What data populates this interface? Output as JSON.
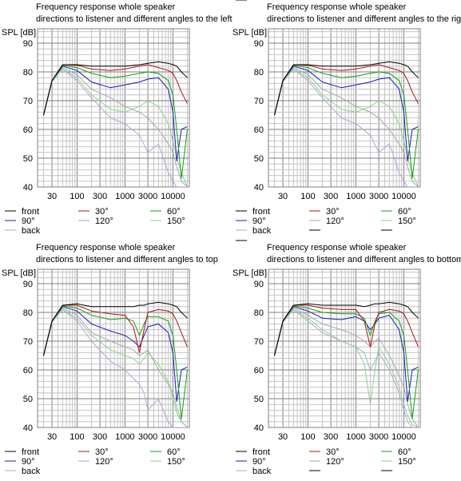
{
  "chart_data": [
    {
      "type": "line",
      "title": "Frequency response whole speaker",
      "subtitle": "directions to listener and different angles to the left",
      "ylabel": "SPL [dB]",
      "xlabel": "",
      "x_scale": "log",
      "xlim": [
        15,
        22000
      ],
      "ylim": [
        40,
        95
      ],
      "grid": true,
      "x_ticks": [
        "30",
        "100",
        "300",
        "1000",
        "3000",
        "10000"
      ],
      "y_ticks": [
        "40",
        "50",
        "60",
        "70",
        "80",
        "90"
      ],
      "legend": [
        {
          "name": "front",
          "color": "#000000"
        },
        {
          "name": "30°",
          "color": "#b01010"
        },
        {
          "name": "60°",
          "color": "#10a010"
        },
        {
          "name": "90°",
          "color": "#1818c0"
        },
        {
          "name": "120°",
          "color": "#a8a8a8"
        },
        {
          "name": "150°",
          "color": "#90d090"
        },
        {
          "name": "back",
          "color": "#a8a8d8"
        }
      ],
      "x": [
        20,
        30,
        50,
        100,
        200,
        500,
        1000,
        2000,
        3000,
        5000,
        8000,
        10000,
        12000,
        15000,
        20000
      ],
      "series": [
        {
          "name": "front",
          "color": "#000000",
          "values": [
            65,
            77,
            82.5,
            82.5,
            82,
            82,
            82,
            82.5,
            83,
            83.5,
            83,
            82.5,
            82,
            80,
            78
          ]
        },
        {
          "name": "30°",
          "color": "#b01010",
          "values": [
            65,
            77,
            82.5,
            82.3,
            81,
            80.5,
            81,
            82,
            82.5,
            81.5,
            80.5,
            79.5,
            77,
            73,
            69
          ]
        },
        {
          "name": "60°",
          "color": "#10a010",
          "values": [
            65,
            77,
            82.3,
            81.5,
            79.5,
            78,
            78.5,
            79.5,
            80,
            79.5,
            77,
            72,
            60,
            43,
            60
          ]
        },
        {
          "name": "90°",
          "color": "#1818c0",
          "values": [
            65,
            77,
            82,
            80.5,
            76.5,
            74.5,
            75.5,
            76.5,
            77.5,
            78,
            74,
            66,
            49,
            60,
            61
          ]
        },
        {
          "name": "120°",
          "color": "#a8a8a8",
          "values": [
            65,
            77,
            81.5,
            79,
            74,
            71,
            68,
            66,
            64,
            60,
            55,
            52,
            47,
            42,
            40
          ]
        },
        {
          "name": "150°",
          "color": "#90d090",
          "values": [
            65,
            76.5,
            81,
            78,
            72,
            67,
            66,
            68,
            70,
            68,
            62,
            56,
            50,
            45,
            40
          ]
        },
        {
          "name": "back",
          "color": "#a8a8d8",
          "values": [
            65,
            76.5,
            81,
            77,
            71,
            64,
            62,
            58,
            52,
            55,
            45,
            42,
            40,
            40,
            40
          ]
        }
      ]
    },
    {
      "type": "line",
      "title": "Frequency response whole speaker",
      "subtitle": "directions to listener and different angles to the right",
      "ylabel": "SPL [dB]",
      "xlabel": "",
      "x_scale": "log",
      "xlim": [
        15,
        22000
      ],
      "ylim": [
        40,
        95
      ],
      "grid": true,
      "x_ticks": [
        "30",
        "100",
        "300",
        "1000",
        "3000",
        "10000"
      ],
      "y_ticks": [
        "40",
        "50",
        "60",
        "70",
        "80",
        "90"
      ],
      "legend": [
        {
          "name": "front",
          "color": "#000000"
        },
        {
          "name": "30°",
          "color": "#b01010"
        },
        {
          "name": "60°",
          "color": "#10a010"
        },
        {
          "name": "90°",
          "color": "#1818c0"
        },
        {
          "name": "120°",
          "color": "#a8a8a8"
        },
        {
          "name": "150°",
          "color": "#90d090"
        },
        {
          "name": "back",
          "color": "#a8a8d8"
        },
        {
          "name": "",
          "color": "#000000"
        },
        {
          "name": "",
          "color": "#000000"
        },
        {
          "name": "",
          "color": "#000000"
        }
      ],
      "x": [
        20,
        30,
        50,
        100,
        200,
        500,
        1000,
        2000,
        3000,
        5000,
        8000,
        10000,
        12000,
        15000,
        20000
      ],
      "series": [
        {
          "name": "front",
          "color": "#000000",
          "values": [
            65,
            77,
            82.5,
            82.5,
            82,
            82,
            82,
            82.5,
            83,
            83.5,
            83,
            82.5,
            82,
            80,
            78
          ]
        },
        {
          "name": "30°",
          "color": "#b01010",
          "values": [
            65,
            77,
            82.5,
            82.3,
            81,
            80.5,
            81,
            82,
            82.5,
            81.5,
            80.5,
            79.5,
            77,
            73,
            69
          ]
        },
        {
          "name": "60°",
          "color": "#10a010",
          "values": [
            65,
            77,
            82.3,
            81.5,
            79.5,
            78,
            78.5,
            79.5,
            80,
            79.5,
            77,
            72,
            60,
            43,
            60
          ]
        },
        {
          "name": "90°",
          "color": "#1818c0",
          "values": [
            65,
            77,
            82,
            80.5,
            76.5,
            74.5,
            75.5,
            76.5,
            77.5,
            78,
            74,
            66,
            49,
            60,
            61
          ]
        },
        {
          "name": "120°",
          "color": "#a8a8a8",
          "values": [
            65,
            77,
            81.5,
            79,
            74,
            71,
            68,
            66,
            64,
            60,
            55,
            52,
            47,
            42,
            40
          ]
        },
        {
          "name": "150°",
          "color": "#90d090",
          "values": [
            65,
            76.5,
            81,
            78,
            72,
            67,
            66,
            68,
            70,
            68,
            62,
            56,
            50,
            45,
            40
          ]
        },
        {
          "name": "back",
          "color": "#a8a8d8",
          "values": [
            65,
            76.5,
            81,
            77,
            71,
            64,
            62,
            58,
            52,
            55,
            45,
            42,
            40,
            40,
            40
          ]
        }
      ]
    },
    {
      "type": "line",
      "title": "Frequency response whole speaker",
      "subtitle": "directions to listener and different angles to top",
      "ylabel": "SPL [dB]",
      "xlabel": "",
      "x_scale": "log",
      "xlim": [
        15,
        22000
      ],
      "ylim": [
        40,
        95
      ],
      "grid": true,
      "x_ticks": [
        "30",
        "100",
        "300",
        "1000",
        "3000",
        "10000"
      ],
      "y_ticks": [
        "40",
        "50",
        "60",
        "70",
        "80",
        "90"
      ],
      "legend": [
        {
          "name": "front",
          "color": "#000000"
        },
        {
          "name": "30°",
          "color": "#b01010"
        },
        {
          "name": "60°",
          "color": "#10a010"
        },
        {
          "name": "90°",
          "color": "#1818c0"
        },
        {
          "name": "120°",
          "color": "#a8a8a8"
        },
        {
          "name": "150°",
          "color": "#90d090"
        },
        {
          "name": "back",
          "color": "#a8a8d8"
        }
      ],
      "x": [
        20,
        30,
        50,
        100,
        200,
        500,
        1000,
        1500,
        2000,
        2500,
        3000,
        5000,
        8000,
        10000,
        12000,
        15000,
        20000
      ],
      "series": [
        {
          "name": "front",
          "color": "#000000",
          "values": [
            65,
            77,
            82.5,
            83,
            82,
            82,
            82,
            82,
            82.5,
            82.5,
            83,
            83.5,
            83,
            82.5,
            82,
            80,
            78
          ]
        },
        {
          "name": "30°",
          "color": "#b01010",
          "values": [
            65,
            77,
            82.5,
            82.5,
            80.5,
            79.5,
            79,
            75,
            66,
            74,
            80,
            81,
            80.5,
            79.5,
            77,
            73,
            68
          ]
        },
        {
          "name": "60°",
          "color": "#10a010",
          "values": [
            65,
            77,
            82.3,
            81.5,
            79,
            77.5,
            78,
            77,
            72,
            76,
            78.5,
            78.5,
            77,
            72,
            60,
            43,
            60
          ]
        },
        {
          "name": "90°",
          "color": "#1818c0",
          "values": [
            65,
            77,
            82,
            80.5,
            76,
            73.5,
            72,
            70,
            68,
            72,
            75,
            76,
            73,
            66,
            49,
            60,
            61
          ]
        },
        {
          "name": "120°",
          "color": "#a8a8a8",
          "values": [
            65,
            77,
            81.5,
            79,
            73,
            70,
            68,
            67,
            65,
            66,
            67,
            60,
            55,
            52,
            47,
            42,
            40
          ]
        },
        {
          "name": "150°",
          "color": "#90d090",
          "values": [
            65,
            76.5,
            81,
            78,
            72,
            67,
            65,
            64,
            62,
            64,
            66,
            62,
            56,
            50,
            45,
            42,
            40
          ]
        },
        {
          "name": "back",
          "color": "#a8a8d8",
          "values": [
            65,
            76.5,
            81,
            77,
            70,
            63,
            60,
            57,
            55,
            52,
            46,
            50,
            42,
            40,
            40,
            40,
            40
          ]
        }
      ]
    },
    {
      "type": "line",
      "title": "Frequency response whole speaker",
      "subtitle": "directions to listener and different angles to bottom",
      "ylabel": "SPL [dB]",
      "xlabel": "",
      "x_scale": "log",
      "xlim": [
        15,
        22000
      ],
      "ylim": [
        40,
        95
      ],
      "grid": true,
      "x_ticks": [
        "30",
        "100",
        "300",
        "1000",
        "3000",
        "10000"
      ],
      "y_ticks": [
        "40",
        "50",
        "60",
        "70",
        "80",
        "90"
      ],
      "legend": [
        {
          "name": "front",
          "color": "#000000"
        },
        {
          "name": "30°",
          "color": "#b01010"
        },
        {
          "name": "60°",
          "color": "#10a010"
        },
        {
          "name": "90°",
          "color": "#1818c0"
        },
        {
          "name": "120°",
          "color": "#a8a8a8"
        },
        {
          "name": "150°",
          "color": "#90d090"
        },
        {
          "name": "back",
          "color": "#a8a8d8"
        },
        {
          "name": "",
          "color": "#000000"
        },
        {
          "name": "",
          "color": "#000000"
        },
        {
          "name": "",
          "color": "#000000"
        }
      ],
      "x": [
        20,
        30,
        50,
        100,
        200,
        500,
        1000,
        1500,
        2000,
        2500,
        3000,
        5000,
        8000,
        10000,
        12000,
        15000,
        20000
      ],
      "series": [
        {
          "name": "front",
          "color": "#000000",
          "values": [
            65,
            77,
            82.5,
            83,
            82.5,
            82.5,
            82.5,
            82,
            82.5,
            83,
            83,
            83.5,
            83,
            82.5,
            82,
            80,
            78
          ]
        },
        {
          "name": "30°",
          "color": "#b01010",
          "values": [
            65,
            77,
            82.5,
            82.5,
            81.5,
            81,
            81,
            77,
            68,
            76,
            80,
            81,
            80.5,
            79.5,
            77,
            73,
            68
          ]
        },
        {
          "name": "60°",
          "color": "#10a010",
          "values": [
            65,
            77,
            82.3,
            81.5,
            80,
            79.5,
            79.5,
            78,
            72,
            77,
            79.5,
            80,
            77,
            72,
            60,
            43,
            60
          ]
        },
        {
          "name": "90°",
          "color": "#1818c0",
          "values": [
            65,
            77,
            82,
            80.5,
            78,
            77.5,
            78.5,
            77,
            74,
            76,
            78,
            79,
            74,
            66,
            49,
            60,
            61
          ]
        },
        {
          "name": "120°",
          "color": "#a8a8a8",
          "values": [
            65,
            77,
            81.5,
            79,
            76,
            74,
            72,
            70,
            68,
            70,
            71,
            65,
            58,
            54,
            48,
            43,
            40
          ]
        },
        {
          "name": "150°",
          "color": "#90d090",
          "values": [
            65,
            76.5,
            81,
            78,
            74,
            70,
            68,
            62,
            48,
            60,
            68,
            62,
            54,
            48,
            44,
            41,
            40
          ]
        },
        {
          "name": "back",
          "color": "#a8a8d8",
          "values": [
            65,
            76.5,
            81,
            77,
            73,
            70,
            68,
            66,
            60,
            63,
            66,
            60,
            52,
            46,
            42,
            40,
            40
          ]
        }
      ]
    }
  ]
}
